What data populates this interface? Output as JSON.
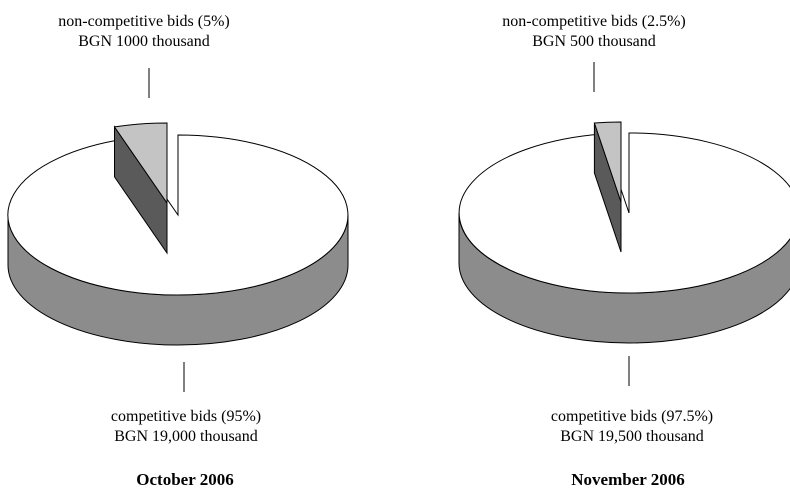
{
  "colors": {
    "competitive_top": "#ffffff",
    "competitive_side": "#8c8c8c",
    "noncompetitive_top": "#c4c4c4",
    "noncompetitive_side": "#5a5a5a",
    "outline": "#000000"
  },
  "chart_data": [
    {
      "type": "pie",
      "title": "October 2006",
      "slices": [
        {
          "name": "competitive bids",
          "percent": 95,
          "value": 19000,
          "unit": "BGN thousand",
          "label_line1": "competitive bids (95%)",
          "label_line2": "BGN 19,000 thousand"
        },
        {
          "name": "non-competitive bids",
          "percent": 5,
          "value": 1000,
          "unit": "BGN thousand",
          "label_line1": "non-competitive bids (5%)",
          "label_line2": "BGN 1000 thousand"
        }
      ]
    },
    {
      "type": "pie",
      "title": "November 2006",
      "slices": [
        {
          "name": "competitive bids",
          "percent": 97.5,
          "value": 19500,
          "unit": "BGN thousand",
          "label_line1": "competitive bids (97.5%)",
          "label_line2": "BGN 19,500 thousand"
        },
        {
          "name": "non-competitive bids",
          "percent": 2.5,
          "value": 500,
          "unit": "BGN thousand",
          "label_line1": "non-competitive bids (2.5%)",
          "label_line2": "BGN 500 thousand"
        }
      ]
    }
  ]
}
